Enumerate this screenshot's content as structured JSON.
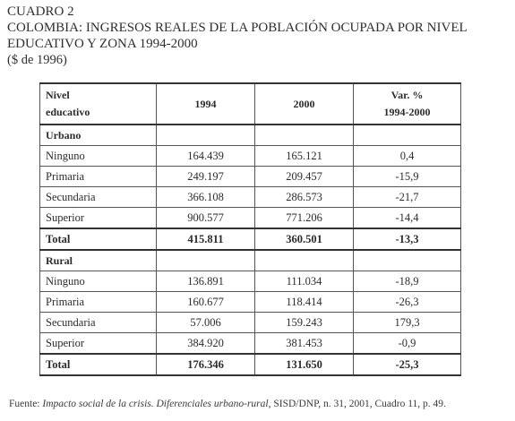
{
  "heading": {
    "label": "CUADRO 2",
    "title_line1": "COLOMBIA: INGRESOS REALES DE LA POBLACIÓN OCUPADA POR NIVEL",
    "title_line2": "EDUCATIVO Y ZONA 1994-2000",
    "units": "($ de 1996)"
  },
  "table": {
    "header": {
      "col1_line1": "Nivel",
      "col1_line2": "educativo",
      "col2": "1994",
      "col3": "2000",
      "col4_line1": "Var. %",
      "col4_line2": "1994-2000"
    },
    "urban": {
      "title": "Urbano",
      "rows": [
        {
          "level": "Ninguno",
          "y1994": "164.439",
          "y2000": "165.121",
          "var": "0,4"
        },
        {
          "level": "Primaria",
          "y1994": "249.197",
          "y2000": "209.457",
          "var": "-15,9"
        },
        {
          "level": "Secundaria",
          "y1994": "366.108",
          "y2000": "286.573",
          "var": "-21,7"
        },
        {
          "level": "Superior",
          "y1994": "900.577",
          "y2000": "771.206",
          "var": "-14,4"
        }
      ],
      "total": {
        "level": "Total",
        "y1994": "415.811",
        "y2000": "360.501",
        "var": "-13,3"
      }
    },
    "rural": {
      "title": "Rural",
      "rows": [
        {
          "level": "Ninguno",
          "y1994": "136.891",
          "y2000": "111.034",
          "var": "-18,9"
        },
        {
          "level": "Primaria",
          "y1994": "160.677",
          "y2000": "118.414",
          "var": "-26,3"
        },
        {
          "level": "Secundaria",
          "y1994": "57.006",
          "y2000": "159.243",
          "var": "179,3"
        },
        {
          "level": "Superior",
          "y1994": "384.920",
          "y2000": "381.453",
          "var": "-0,9"
        }
      ],
      "total": {
        "level": "Total",
        "y1994": "176.346",
        "y2000": "131.650",
        "var": "-25,3"
      }
    }
  },
  "source": {
    "prefix": "Fuente: ",
    "italic": "Impacto social de la crisis. Diferenciales urbano-rural",
    "suffix": ", SISD/DNP, n. 31,  2001, Cuadro 11, p. 49."
  }
}
